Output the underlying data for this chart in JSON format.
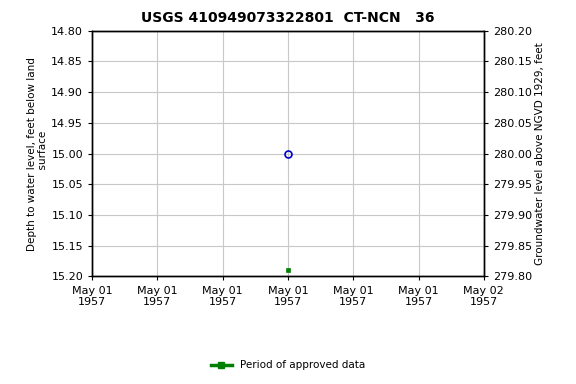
{
  "title": "USGS 410949073322801  CT-NCN   36",
  "ylabel_left": "Depth to water level, feet below land\n  surface",
  "ylabel_right": "Groundwater level above NGVD 1929, feet",
  "ylim_left_top": 14.8,
  "ylim_left_bottom": 15.2,
  "ylim_right_top": 280.2,
  "ylim_right_bottom": 279.8,
  "yticks_left": [
    14.8,
    14.85,
    14.9,
    14.95,
    15.0,
    15.05,
    15.1,
    15.15,
    15.2
  ],
  "yticks_right": [
    280.2,
    280.15,
    280.1,
    280.05,
    280.0,
    279.95,
    279.9,
    279.85,
    279.8
  ],
  "ytick_labels_left": [
    "14.80",
    "14.85",
    "14.90",
    "14.95",
    "15.00",
    "15.05",
    "15.10",
    "15.15",
    "15.20"
  ],
  "ytick_labels_right": [
    "280.20",
    "280.15",
    "280.10",
    "280.05",
    "280.00",
    "279.95",
    "279.90",
    "279.85",
    "279.80"
  ],
  "x_start": 0.0,
  "x_end": 6.0,
  "xtick_positions": [
    0,
    1,
    2,
    3,
    4,
    5,
    6
  ],
  "xtick_labels": [
    "May 01\n1957",
    "May 01\n1957",
    "May 01\n1957",
    "May 01\n1957",
    "May 01\n1957",
    "May 01\n1957",
    "May 02\n1957"
  ],
  "data_blue_x": 3.0,
  "data_blue_y": 15.0,
  "data_green_x": 3.0,
  "data_green_y": 15.19,
  "blue_color": "#0000cc",
  "green_color": "#008000",
  "background_color": "#ffffff",
  "grid_color": "#c8c8c8",
  "legend_label": "Period of approved data",
  "title_fontsize": 10,
  "label_fontsize": 7.5,
  "tick_fontsize": 8
}
